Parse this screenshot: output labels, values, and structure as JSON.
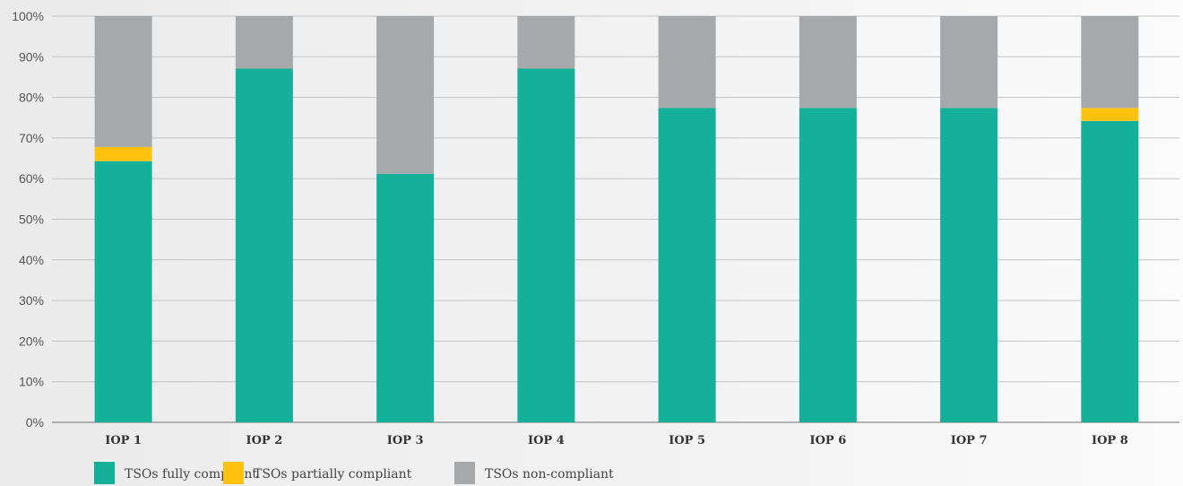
{
  "chart_data": {
    "type": "bar",
    "stacked": true,
    "categories": [
      "IOP 1",
      "IOP 2",
      "IOP 3",
      "IOP 4",
      "IOP 5",
      "IOP 6",
      "IOP 7",
      "IOP 8"
    ],
    "series": [
      {
        "name": "TSOs fully compliant",
        "color": "#14b09a",
        "values": [
          64.3,
          87.1,
          61.2,
          87.1,
          77.4,
          77.4,
          77.4,
          74.2
        ]
      },
      {
        "name": "TSOs partially compliant",
        "color": "#ffc20e",
        "values": [
          3.5,
          0,
          0,
          0,
          0,
          0,
          0,
          3.2
        ]
      },
      {
        "name": "TSOs non-compliant",
        "color": "#a7a8aa",
        "values": [
          32.2,
          12.9,
          38.8,
          12.9,
          22.6,
          22.6,
          22.6,
          22.6
        ]
      }
    ],
    "yticks": [
      "0%",
      "10%",
      "20%",
      "30%",
      "40%",
      "50%",
      "60%",
      "70%",
      "80%",
      "90%",
      "100%"
    ],
    "ylim": [
      0,
      100
    ],
    "grid": true,
    "legend_position": "bottom-left",
    "title": "",
    "xlabel": "",
    "ylabel": ""
  }
}
